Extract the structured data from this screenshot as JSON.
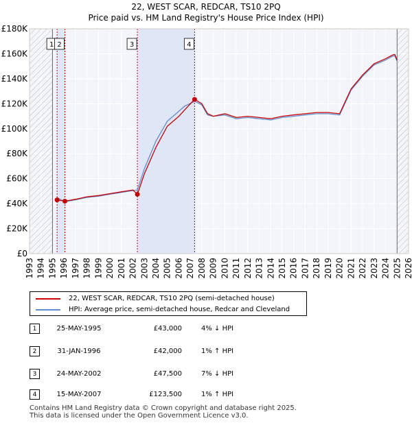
{
  "chart_data": {
    "type": "line",
    "title": "22, WEST SCAR, REDCAR, TS10 2PQ",
    "subtitle": "Price paid vs. HM Land Registry's House Price Index (HPI)",
    "xlim": [
      1993,
      2026
    ],
    "ylim": [
      0,
      180000
    ],
    "x_ticks": [
      1993,
      1994,
      1995,
      1996,
      1997,
      1998,
      1999,
      2000,
      2001,
      2002,
      2003,
      2004,
      2005,
      2006,
      2007,
      2008,
      2009,
      2010,
      2011,
      2012,
      2013,
      2014,
      2015,
      2016,
      2017,
      2018,
      2019,
      2020,
      2021,
      2022,
      2023,
      2024,
      2025,
      2026
    ],
    "y_ticks": [
      {
        "value": 0,
        "label": "£0"
      },
      {
        "value": 20000,
        "label": "£20K"
      },
      {
        "value": 40000,
        "label": "£40K"
      },
      {
        "value": 60000,
        "label": "£60K"
      },
      {
        "value": 80000,
        "label": "£80K"
      },
      {
        "value": 100000,
        "label": "£100K"
      },
      {
        "value": 120000,
        "label": "£120K"
      },
      {
        "value": 140000,
        "label": "£140K"
      },
      {
        "value": 160000,
        "label": "£160K"
      },
      {
        "value": 180000,
        "label": "£180K"
      }
    ],
    "hatched_ranges": [
      [
        1993,
        1995.0
      ],
      [
        2025.0,
        2026
      ]
    ],
    "shaded_ranges": [
      [
        1995.4,
        1996.08
      ],
      [
        2002.39,
        2007.37
      ]
    ],
    "series": [
      {
        "name": "22, WEST SCAR, REDCAR, TS10 2PQ (semi-detached house)",
        "color": "#cc0000",
        "x": [
          1995.4,
          1996.08,
          1997,
          1998,
          1999,
          2000,
          2001,
          2002.0,
          2002.39,
          2003,
          2004,
          2005,
          2006,
          2006.5,
          2007.37,
          2008,
          2008.5,
          2009,
          2010,
          2011,
          2012,
          2013,
          2014,
          2015,
          2016,
          2017,
          2018,
          2019,
          2020,
          2020.5,
          2021,
          2022,
          2023,
          2024,
          2024.6,
          2024.8,
          2025
        ],
        "y": [
          43000,
          42000,
          43500,
          45500,
          46500,
          48000,
          49500,
          51000,
          47500,
          64000,
          85000,
          102000,
          110000,
          115000,
          123500,
          120000,
          112000,
          110000,
          112000,
          109000,
          110000,
          109000,
          108000,
          110000,
          111000,
          112000,
          113000,
          113000,
          112000,
          122000,
          132000,
          143000,
          152000,
          156000,
          159000,
          159500,
          155000
        ]
      },
      {
        "name": "HPI: Average price, semi-detached house, Redcar and Cleveland",
        "color": "#5b8fd3",
        "x": [
          1995.4,
          1996.08,
          1997,
          1998,
          1999,
          2000,
          2001,
          2002.0,
          2002.39,
          2003,
          2004,
          2005,
          2006,
          2006.5,
          2007.37,
          2008,
          2008.5,
          2009,
          2010,
          2011,
          2012,
          2013,
          2014,
          2015,
          2016,
          2017,
          2018,
          2019,
          2020,
          2020.5,
          2021,
          2022,
          2023,
          2024,
          2024.6,
          2024.8,
          2025
        ],
        "y": [
          44800,
          41600,
          43000,
          45000,
          46000,
          47500,
          49000,
          50500,
          51000,
          68000,
          90000,
          106000,
          114000,
          118000,
          122000,
          119000,
          111000,
          110000,
          111000,
          108000,
          109000,
          108000,
          107000,
          109000,
          110000,
          111000,
          112000,
          112000,
          111000,
          121000,
          131000,
          142000,
          151000,
          155000,
          158000,
          158500,
          154000
        ]
      }
    ],
    "sales": [
      {
        "label": "1",
        "x": 1995.4,
        "y": 43000
      },
      {
        "label": "2",
        "x": 1996.08,
        "y": 42000
      },
      {
        "label": "3",
        "x": 2002.39,
        "y": 47500
      },
      {
        "label": "4",
        "x": 2007.37,
        "y": 123500
      }
    ]
  },
  "legend": {
    "price_paid": "22, WEST SCAR, REDCAR, TS10 2PQ (semi-detached house)",
    "hpi": "HPI: Average price, semi-detached house, Redcar and Cleveland"
  },
  "sales_table": [
    {
      "num": "1",
      "date": "25-MAY-1995",
      "price": "£43,000",
      "diff": "4% ↓ HPI"
    },
    {
      "num": "2",
      "date": "31-JAN-1996",
      "price": "£42,000",
      "diff": "1% ↑ HPI"
    },
    {
      "num": "3",
      "date": "24-MAY-2002",
      "price": "£47,500",
      "diff": "7% ↓ HPI"
    },
    {
      "num": "4",
      "date": "15-MAY-2007",
      "price": "£123,500",
      "diff": "1% ↑ HPI"
    }
  ],
  "footer": {
    "line1": "Contains HM Land Registry data © Crown copyright and database right 2025.",
    "line2": "This data is licensed under the Open Government Licence v3.0."
  }
}
